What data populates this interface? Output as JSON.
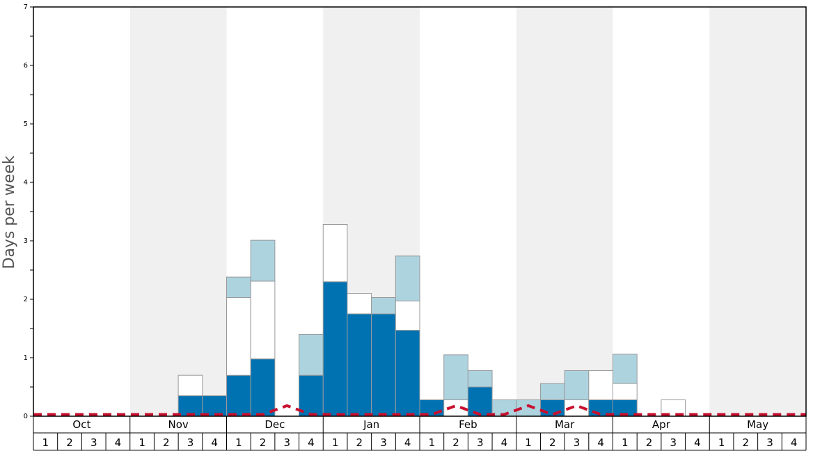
{
  "chart_data": {
    "type": "bar",
    "stacked": true,
    "ylabel": "Days per week",
    "ylim": [
      0,
      7
    ],
    "yticks": [
      0,
      1,
      2,
      3,
      4,
      5,
      6,
      7
    ],
    "months": [
      "Oct",
      "Nov",
      "Dec",
      "Jan",
      "Feb",
      "Mar",
      "Apr",
      "May"
    ],
    "weeks_per_month": [
      "1",
      "2",
      "3",
      "4"
    ],
    "shaded_months": [
      "Nov",
      "Jan",
      "Mar",
      "May"
    ],
    "colors": {
      "series_1": "#0072b2",
      "series_2": "#ffffff",
      "series_3": "#add3df",
      "line": "#c8102e",
      "band": "#f0f0f0",
      "bar_edge": "#999999"
    },
    "series": [
      {
        "values": [
          0,
          0,
          0,
          0,
          0,
          0,
          0.35,
          0.35,
          0.7,
          0.98,
          0,
          0.7,
          2.3,
          1.75,
          1.75,
          1.47,
          0.28,
          0,
          0.5,
          0,
          0,
          0.28,
          0,
          0.28,
          0.28,
          0,
          0,
          0,
          0,
          0,
          0,
          0
        ]
      },
      {
        "values": [
          0,
          0,
          0,
          0,
          0,
          0,
          0.35,
          0,
          1.33,
          1.33,
          0,
          0,
          0.98,
          0.35,
          0,
          0.5,
          0,
          0.28,
          0,
          0,
          0,
          0,
          0.28,
          0.5,
          0.28,
          0,
          0.28,
          0,
          0,
          0,
          0,
          0
        ]
      },
      {
        "values": [
          0,
          0,
          0,
          0,
          0,
          0,
          0,
          0,
          0.35,
          0.7,
          0,
          0.7,
          0,
          0,
          0.28,
          0.77,
          0,
          0.77,
          0.28,
          0.28,
          0.28,
          0.28,
          0.5,
          0,
          0.5,
          0,
          0,
          0,
          0,
          0,
          0,
          0
        ]
      }
    ],
    "line": {
      "style": "dashed",
      "values": [
        0.03,
        0.03,
        0.03,
        0.03,
        0.03,
        0.03,
        0.03,
        0.03,
        0.03,
        0.03,
        0.18,
        0.03,
        0.03,
        0.03,
        0.03,
        0.03,
        0.03,
        0.18,
        0.03,
        0.03,
        0.18,
        0.03,
        0.18,
        0.03,
        0.03,
        0.03,
        0.03,
        0.03,
        0.03,
        0.03,
        0.03,
        0.03
      ]
    }
  }
}
